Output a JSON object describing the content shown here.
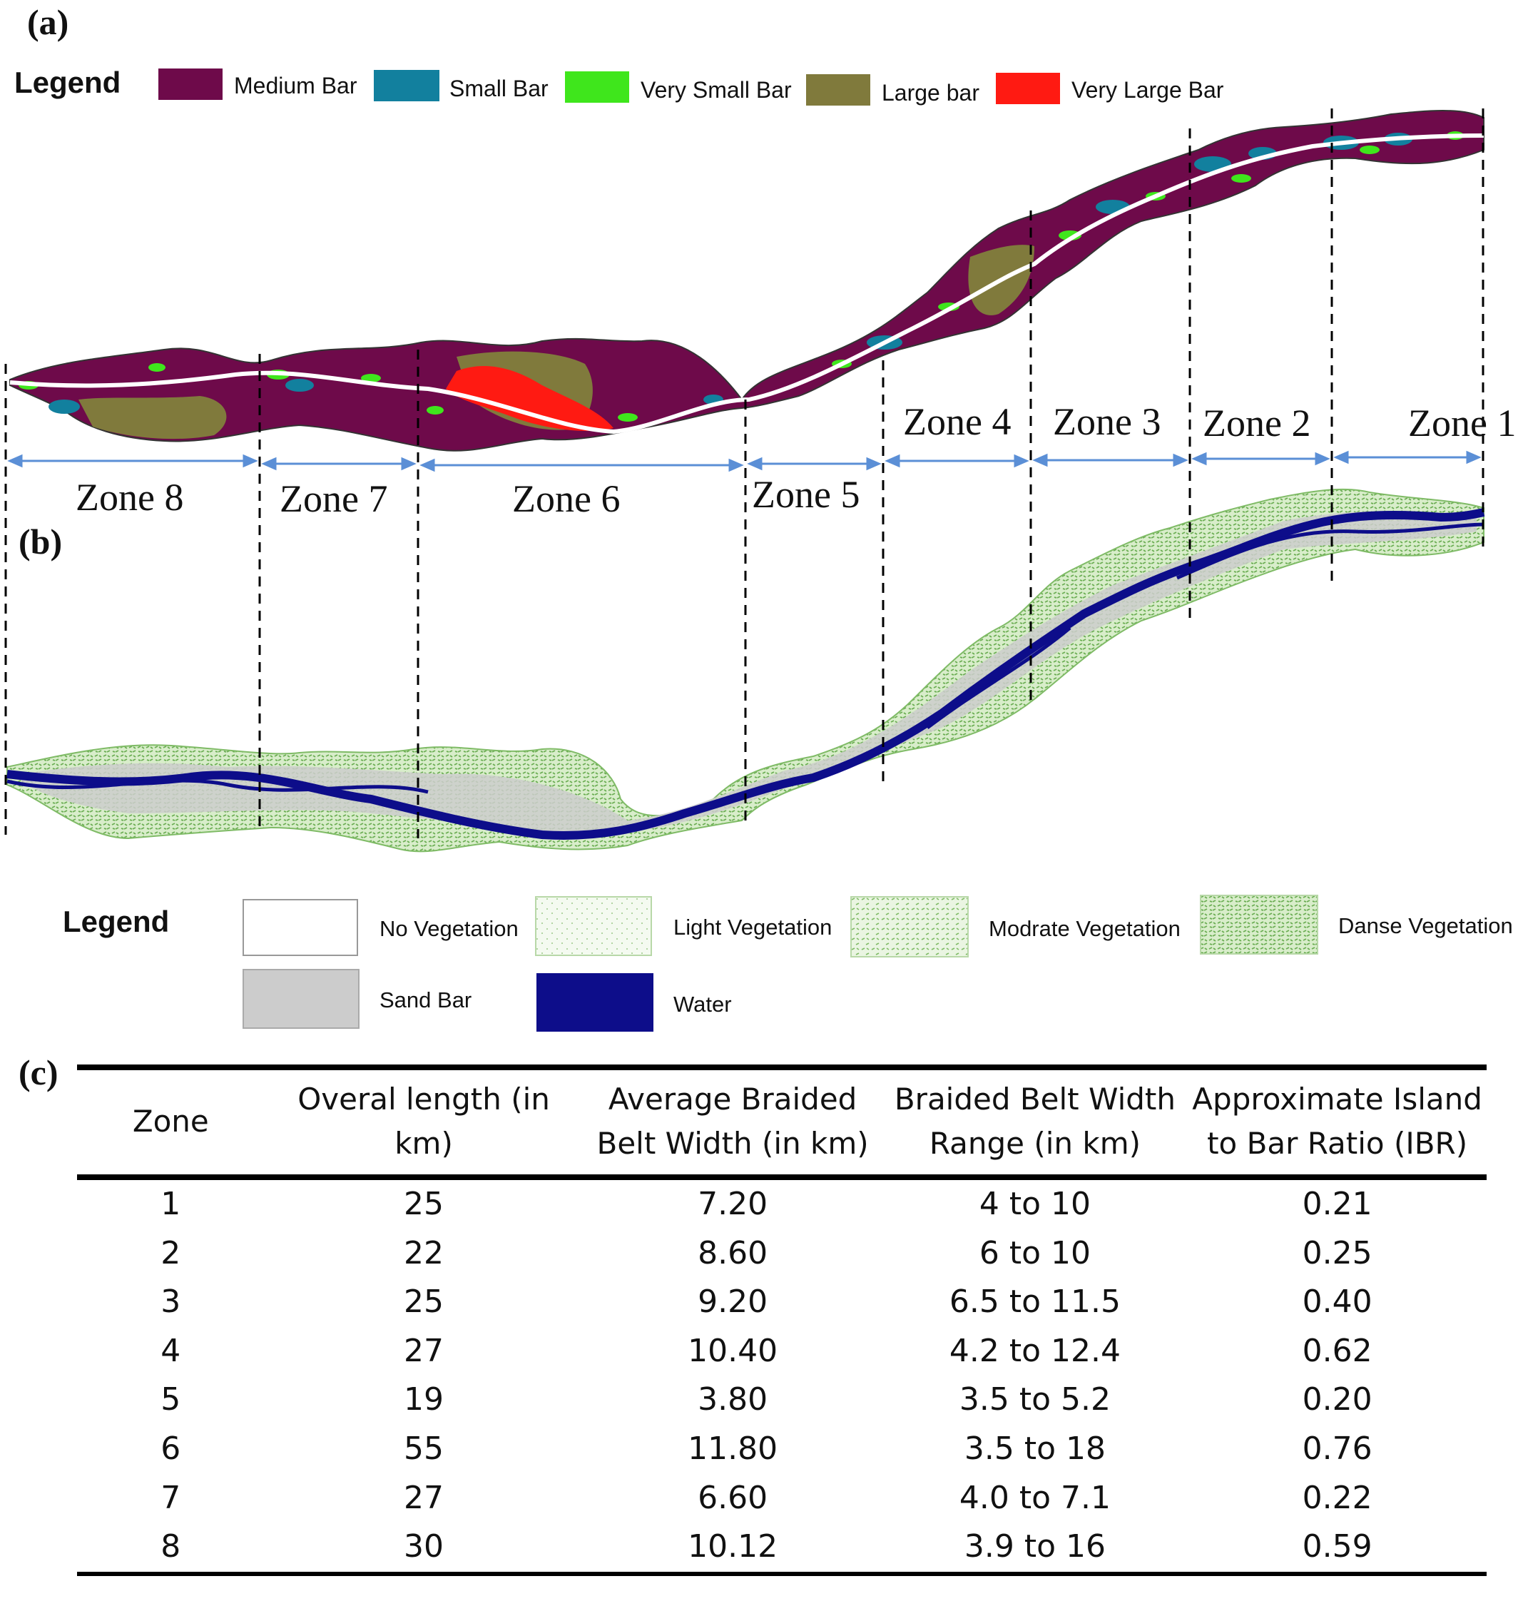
{
  "panel_a": {
    "label": "(a)",
    "legend_title": "Legend",
    "legend": [
      {
        "label": "Medium Bar",
        "color": "#6e0a4a"
      },
      {
        "label": "Small Bar",
        "color": "#12809e"
      },
      {
        "label": "Very Small Bar",
        "color": "#3fe61c"
      },
      {
        "label": "Large bar",
        "color": "#807a3c"
      },
      {
        "label": "Very Large Bar",
        "color": "#ff1a12"
      }
    ],
    "zones": [
      "Zone 1",
      "Zone 2",
      "Zone 3",
      "Zone 4",
      "Zone 5",
      "Zone 6",
      "Zone 7",
      "Zone 8"
    ]
  },
  "panel_b": {
    "label": "(b)",
    "legend_title": "Legend",
    "legend": [
      {
        "label": "No Vegetation",
        "color": "#ffffff"
      },
      {
        "label": "Light Vegetation",
        "color": "#e6f2e0"
      },
      {
        "label": "Modrate Vegetation",
        "color": "#c9e6b4"
      },
      {
        "label": "Danse Vegetation",
        "color": "#a8d68c"
      },
      {
        "label": "Sand Bar",
        "color": "#cccccc"
      },
      {
        "label": "Water",
        "color": "#0d0d8a"
      }
    ]
  },
  "panel_c": {
    "label": "(c)",
    "columns": [
      "Zone",
      "Overal length (in km)",
      "Average Braided Belt Width (in km)",
      "Braided Belt Width Range (in km)",
      "Approximate Island to Bar Ratio (IBR)"
    ],
    "rows": [
      [
        "1",
        "25",
        "7.20",
        "4 to 10",
        "0.21"
      ],
      [
        "2",
        "22",
        "8.60",
        "6 to 10",
        "0.25"
      ],
      [
        "3",
        "25",
        "9.20",
        "6.5 to 11.5",
        "0.40"
      ],
      [
        "4",
        "27",
        "10.40",
        "4.2 to 12.4",
        "0.62"
      ],
      [
        "5",
        "19",
        "3.80",
        "3.5 to 5.2",
        "0.20"
      ],
      [
        "6",
        "55",
        "11.80",
        "3.5 to 18",
        "0.76"
      ],
      [
        "7",
        "27",
        "6.60",
        "4.0 to 7.1",
        "0.22"
      ],
      [
        "8",
        "30",
        "10.12",
        "3.9 to 16",
        "0.59"
      ]
    ]
  }
}
